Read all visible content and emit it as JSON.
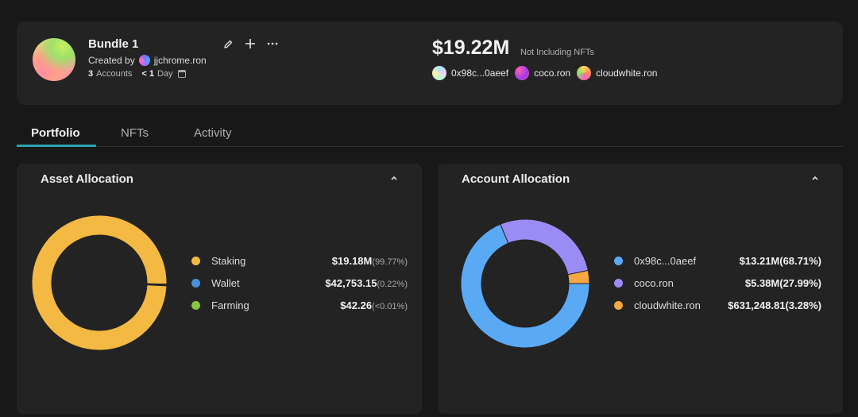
{
  "bundle": {
    "name": "Bundle 1",
    "created_by_label": "Created by",
    "creator": "jjchrome.ron",
    "accounts_count": "3",
    "accounts_label": "Accounts",
    "age_prefix": "< 1",
    "age_label": "Day"
  },
  "actions": {
    "edit_icon": "pencil-icon",
    "add_icon": "plus-icon",
    "more_icon": "more-icon"
  },
  "summary": {
    "total": "$19.22M",
    "note": "Not Including NFTs",
    "accounts": [
      {
        "label": "0x98c...0aeef"
      },
      {
        "label": "coco.ron"
      },
      {
        "label": "cloudwhite.ron"
      }
    ]
  },
  "tabs": [
    {
      "label": "Portfolio",
      "active": true
    },
    {
      "label": "NFTs",
      "active": false
    },
    {
      "label": "Activity",
      "active": false
    }
  ],
  "asset_allocation": {
    "title": "Asset Allocation",
    "items": [
      {
        "name": "Staking",
        "value": "$19.18M",
        "pct": "(99.77%)",
        "share": 99.77,
        "color": "#f4b942"
      },
      {
        "name": "Wallet",
        "value": "$42,753.15",
        "pct": "(0.22%)",
        "share": 0.22,
        "color": "#4a8fd8"
      },
      {
        "name": "Farming",
        "value": "$42.26",
        "pct": "(<0.01%)",
        "share": 0.01,
        "color": "#8cc63f"
      }
    ]
  },
  "account_allocation": {
    "title": "Account Allocation",
    "items": [
      {
        "name": "0x98c...0aeef",
        "value": "$13.21M",
        "pct": "(68.71%)",
        "share": 68.71,
        "color": "#5aa9f5"
      },
      {
        "name": "coco.ron",
        "value": "$5.38M",
        "pct": "(27.99%)",
        "share": 27.99,
        "color": "#9b8cf5"
      },
      {
        "name": "cloudwhite.ron",
        "value": "$631,248.81",
        "pct": "(3.28%)",
        "share": 3.28,
        "color": "#f5a742"
      }
    ]
  }
}
